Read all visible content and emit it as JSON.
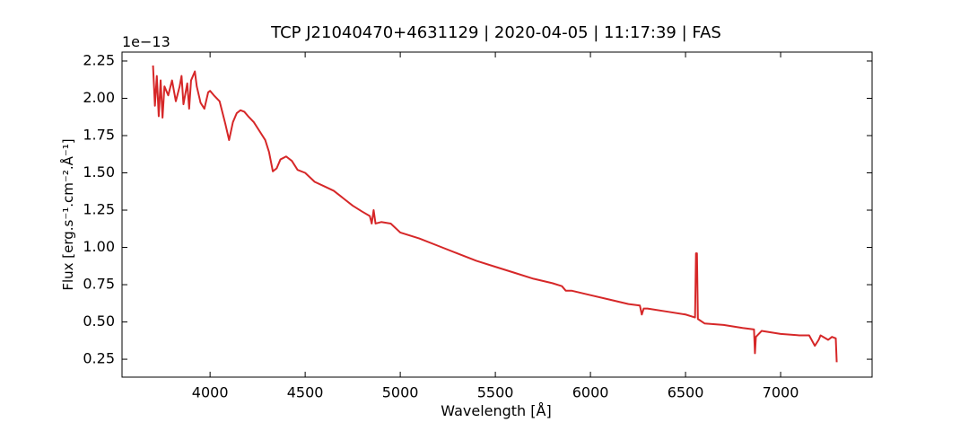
{
  "chart_data": {
    "type": "line",
    "title": "TCP J21040470+4631129 | 2020-04-05 | 11:17:39 | FAS",
    "x_label": "Wavelength [Å]",
    "y_label": "Flux [erg.s⁻¹.cm⁻².Å⁻¹]",
    "y_offset_label": "1e−13",
    "color": "#d62728",
    "x": [
      3700,
      3710,
      3720,
      3730,
      3740,
      3750,
      3760,
      3780,
      3800,
      3820,
      3840,
      3850,
      3860,
      3880,
      3890,
      3900,
      3920,
      3930,
      3950,
      3970,
      3990,
      4000,
      4020,
      4050,
      4080,
      4100,
      4120,
      4140,
      4160,
      4180,
      4200,
      4230,
      4260,
      4290,
      4310,
      4330,
      4350,
      4370,
      4400,
      4430,
      4460,
      4500,
      4550,
      4600,
      4650,
      4700,
      4750,
      4800,
      4840,
      4850,
      4860,
      4870,
      4900,
      4950,
      5000,
      5100,
      5200,
      5300,
      5400,
      5500,
      5600,
      5700,
      5800,
      5850,
      5870,
      5900,
      6000,
      6100,
      6200,
      6260,
      6270,
      6280,
      6300,
      6400,
      6500,
      6550,
      6555,
      6560,
      6565,
      6600,
      6700,
      6800,
      6860,
      6865,
      6870,
      6900,
      7000,
      7100,
      7150,
      7180,
      7200,
      7210,
      7250,
      7270,
      7290,
      7295
    ],
    "values": [
      2.22,
      1.95,
      2.15,
      1.88,
      2.12,
      1.87,
      2.08,
      2.02,
      2.12,
      1.98,
      2.08,
      2.15,
      1.96,
      2.1,
      1.93,
      2.12,
      2.18,
      2.08,
      1.97,
      1.93,
      2.04,
      2.05,
      2.02,
      1.98,
      1.83,
      1.72,
      1.84,
      1.9,
      1.92,
      1.91,
      1.88,
      1.84,
      1.78,
      1.72,
      1.64,
      1.51,
      1.53,
      1.59,
      1.61,
      1.58,
      1.52,
      1.5,
      1.44,
      1.41,
      1.38,
      1.33,
      1.28,
      1.24,
      1.21,
      1.16,
      1.25,
      1.16,
      1.17,
      1.16,
      1.1,
      1.06,
      1.01,
      0.96,
      0.91,
      0.87,
      0.83,
      0.79,
      0.76,
      0.74,
      0.71,
      0.71,
      0.68,
      0.65,
      0.62,
      0.61,
      0.55,
      0.59,
      0.59,
      0.57,
      0.55,
      0.53,
      0.96,
      0.96,
      0.52,
      0.49,
      0.48,
      0.46,
      0.45,
      0.29,
      0.4,
      0.44,
      0.42,
      0.41,
      0.41,
      0.34,
      0.38,
      0.41,
      0.38,
      0.4,
      0.39,
      0.23
    ],
    "xlim": [
      3537,
      7481
    ],
    "ylim": [
      0.13,
      2.31
    ],
    "xticks": [
      4000,
      4500,
      5000,
      5500,
      6000,
      6500,
      7000
    ],
    "yticks": [
      0.25,
      {
        "value": 0.5,
        "label": "0.50"
      },
      0.75,
      {
        "value": 1.0,
        "label": "1.00"
      },
      1.25,
      {
        "value": 1.5,
        "label": "1.50"
      },
      1.75,
      {
        "value": 2.0,
        "label": "2.00"
      },
      2.25
    ]
  }
}
